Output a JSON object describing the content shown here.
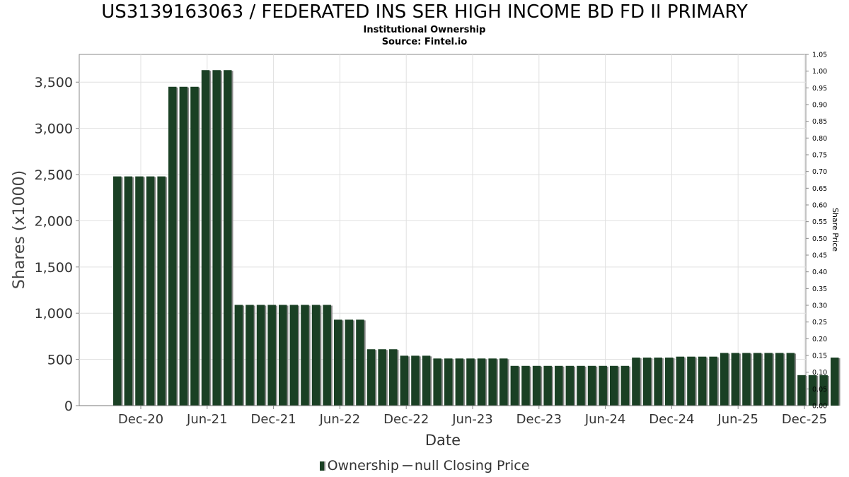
{
  "chart_data": {
    "type": "bar",
    "title": "US3139163063 / FEDERATED INS SER HIGH INCOME BD FD II PRIMARY",
    "subtitle": "Institutional Ownership",
    "source": "Source: Fintel.io",
    "xlabel": "Date",
    "ylabel": "Shares (x1000)",
    "y2label": "Share Price",
    "x_ticks": [
      "Dec-20",
      "Jun-21",
      "Dec-21",
      "Jun-22",
      "Dec-22",
      "Jun-23",
      "Dec-23",
      "Jun-24",
      "Dec-24",
      "Jun-25",
      "Dec-25"
    ],
    "y_ticks": [
      "0",
      "500",
      "1,000",
      "1,500",
      "2,000",
      "2,500",
      "3,000",
      "3,500"
    ],
    "y2_ticks": [
      "0.00",
      "0.05",
      "0.10",
      "0.15",
      "0.20",
      "0.25",
      "0.30",
      "0.35",
      "0.40",
      "0.45",
      "0.50",
      "0.55",
      "0.60",
      "0.65",
      "0.70",
      "0.75",
      "0.80",
      "0.85",
      "0.90",
      "0.95",
      "1.00",
      "1.05"
    ],
    "ylim": [
      0,
      3800
    ],
    "y2lim": [
      0,
      1.05
    ],
    "grid": true,
    "legend_position": "bottom",
    "legend": [
      "Ownership",
      "null Closing Price"
    ],
    "colors": {
      "bar": "#1a4024",
      "bar_shadow": "#8a8a8a",
      "grid": "#e0e0e0",
      "axis": "#888888"
    },
    "series": [
      {
        "name": "Ownership",
        "values": [
          2480,
          2480,
          2480,
          2480,
          2480,
          3450,
          3450,
          3450,
          3630,
          3630,
          3630,
          1090,
          1090,
          1090,
          1090,
          1090,
          1090,
          1090,
          1090,
          1090,
          930,
          930,
          930,
          610,
          610,
          610,
          540,
          540,
          540,
          510,
          510,
          510,
          510,
          510,
          510,
          510,
          430,
          430,
          430,
          430,
          430,
          430,
          430,
          430,
          430,
          430,
          430,
          520,
          520,
          520,
          520,
          530,
          530,
          530,
          530,
          570,
          570,
          570,
          570,
          570,
          570,
          570,
          330,
          330,
          330,
          520
        ]
      }
    ]
  }
}
